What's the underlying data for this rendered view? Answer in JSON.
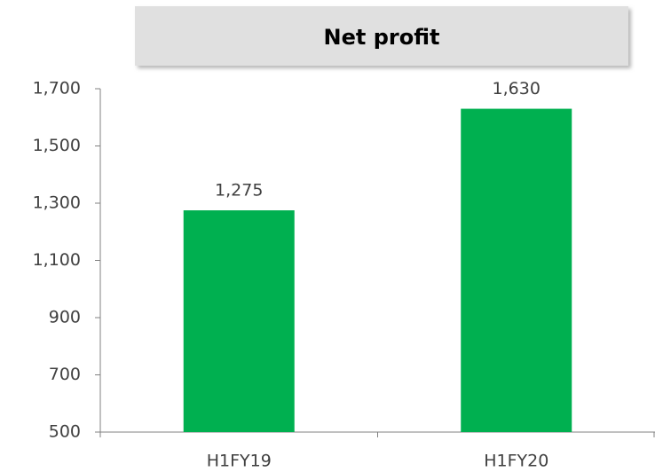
{
  "chart_data": {
    "type": "bar",
    "title": "Net profit",
    "categories": [
      "H1FY19",
      "H1FY20"
    ],
    "values": [
      1275,
      1630
    ],
    "value_labels": [
      "1,275",
      "1,630"
    ],
    "color": "#00b050",
    "ylim": [
      500,
      1700
    ],
    "yticks": [
      500,
      700,
      900,
      {
        "value": 1100,
        "label": "1,100"
      },
      {
        "value": 1300,
        "label": "1,300"
      },
      {
        "value": 1500,
        "label": "1,500"
      },
      {
        "value": 1700,
        "label": "1,700"
      }
    ],
    "grid": false
  }
}
